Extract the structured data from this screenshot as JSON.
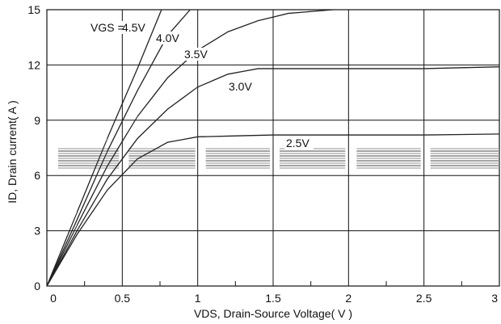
{
  "chart_data": {
    "type": "line",
    "title": "",
    "xlabel": "VDS, Drain-Source Voltage( V )",
    "ylabel": "ID, Drain current( A )",
    "xlim": [
      0,
      3
    ],
    "ylim": [
      0,
      15
    ],
    "x_ticks": [
      "0",
      "0.5",
      "1",
      "1.5",
      "2",
      "2.5",
      "3"
    ],
    "y_ticks": [
      "0",
      "3",
      "6",
      "9",
      "12",
      "15"
    ],
    "grid": true,
    "legend_label_prefix": "VGS =",
    "series": [
      {
        "name": "4.5V",
        "x": [
          0,
          0.2,
          0.4,
          0.6,
          0.76
        ],
        "y": [
          0,
          4.0,
          8.0,
          11.8,
          15
        ]
      },
      {
        "name": "4.0V",
        "x": [
          0,
          0.2,
          0.4,
          0.6,
          0.8,
          0.95
        ],
        "y": [
          0,
          3.6,
          7.3,
          10.6,
          13.6,
          15
        ]
      },
      {
        "name": "3.5V",
        "x": [
          0,
          0.2,
          0.4,
          0.6,
          0.8,
          1.0,
          1.2,
          1.4,
          1.6,
          1.9
        ],
        "y": [
          0,
          3.3,
          6.5,
          9.2,
          11.3,
          12.8,
          13.8,
          14.4,
          14.8,
          15
        ]
      },
      {
        "name": "3.0V",
        "x": [
          0,
          0.2,
          0.4,
          0.6,
          0.8,
          1.0,
          1.2,
          1.4,
          1.6,
          2.0,
          2.5,
          3.0
        ],
        "y": [
          0,
          3.0,
          5.8,
          8.0,
          9.6,
          10.8,
          11.5,
          11.8,
          11.8,
          11.8,
          11.8,
          11.9
        ]
      },
      {
        "name": "2.5V",
        "x": [
          0,
          0.2,
          0.4,
          0.6,
          0.8,
          1.0,
          1.5,
          2.0,
          2.5,
          3.0
        ],
        "y": [
          0,
          2.8,
          5.2,
          6.9,
          7.8,
          8.1,
          8.2,
          8.2,
          8.2,
          8.25
        ]
      }
    ],
    "curve_labels": [
      {
        "series": "4.5V",
        "text": "4.5V"
      },
      {
        "series": "4.0V",
        "text": "4.0V"
      },
      {
        "series": "3.5V",
        "text": "3.5V"
      },
      {
        "series": "3.0V",
        "text": "3.0V"
      },
      {
        "series": "2.5V",
        "text": "2.5V"
      }
    ],
    "colors": {
      "curve": "#222222",
      "grid": "#111111",
      "background": "#ffffff",
      "artifact_band": "#9a9a9a"
    }
  }
}
